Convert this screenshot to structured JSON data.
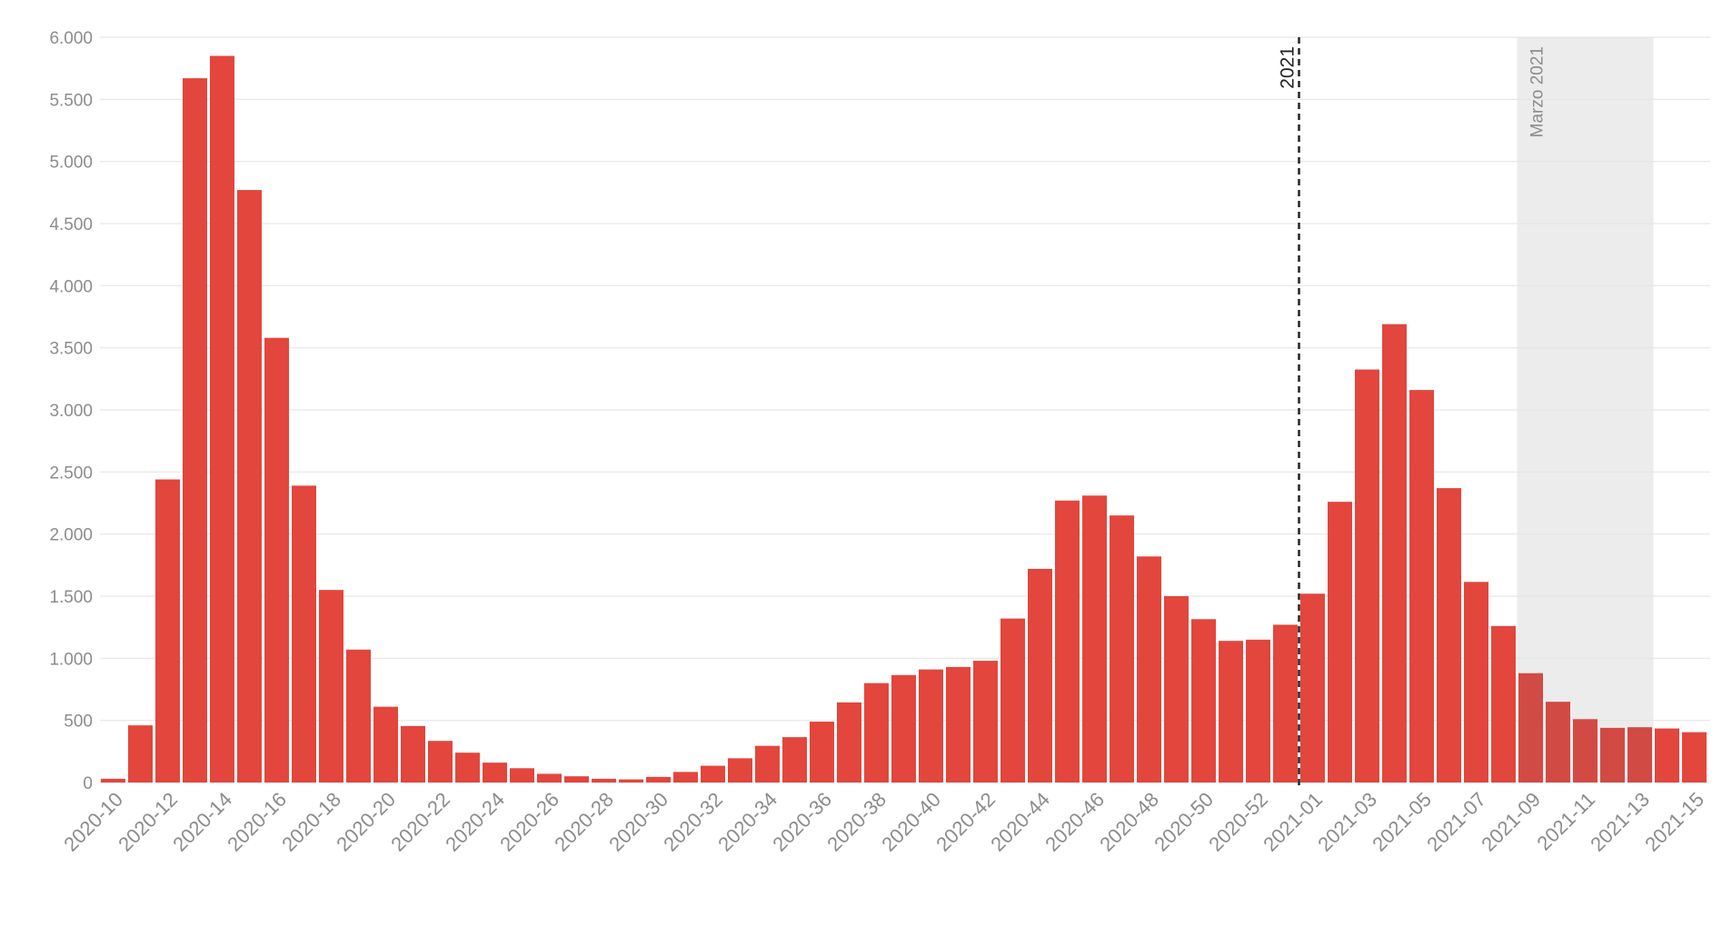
{
  "chart_data": {
    "type": "bar",
    "title": "",
    "xlabel": "",
    "ylabel": "",
    "ylim": [
      0,
      6000
    ],
    "y_ticks": [
      {
        "value": 0,
        "label": "0"
      },
      {
        "value": 500,
        "label": "500"
      },
      {
        "value": 1000,
        "label": "1.000"
      },
      {
        "value": 1500,
        "label": "1.500"
      },
      {
        "value": 2000,
        "label": "2.000"
      },
      {
        "value": 2500,
        "label": "2.500"
      },
      {
        "value": 3000,
        "label": "3.000"
      },
      {
        "value": 3500,
        "label": "3.500"
      },
      {
        "value": 4000,
        "label": "4.000"
      },
      {
        "value": 4500,
        "label": "4.500"
      },
      {
        "value": 5000,
        "label": "5.000"
      },
      {
        "value": 5500,
        "label": "5.500"
      },
      {
        "value": 6000,
        "label": "6.000"
      }
    ],
    "grid": true,
    "legend": "none",
    "bar_color": "#e2463d",
    "categories": [
      "2020-10",
      "2020-11",
      "2020-12",
      "2020-13",
      "2020-14",
      "2020-15",
      "2020-16",
      "2020-17",
      "2020-18",
      "2020-19",
      "2020-20",
      "2020-21",
      "2020-22",
      "2020-23",
      "2020-24",
      "2020-25",
      "2020-26",
      "2020-27",
      "2020-28",
      "2020-29",
      "2020-30",
      "2020-31",
      "2020-32",
      "2020-33",
      "2020-34",
      "2020-35",
      "2020-36",
      "2020-37",
      "2020-38",
      "2020-39",
      "2020-40",
      "2020-41",
      "2020-42",
      "2020-43",
      "2020-44",
      "2020-45",
      "2020-46",
      "2020-47",
      "2020-48",
      "2020-49",
      "2020-50",
      "2020-51",
      "2020-52",
      "2020-53",
      "2021-01",
      "2021-02",
      "2021-03",
      "2021-04",
      "2021-05",
      "2021-06",
      "2021-07",
      "2021-08",
      "2021-09",
      "2021-10",
      "2021-11",
      "2021-12",
      "2021-13",
      "2021-14",
      "2021-15"
    ],
    "x_tick_labels": [
      "2020-10",
      "2020-12",
      "2020-14",
      "2020-16",
      "2020-18",
      "2020-20",
      "2020-22",
      "2020-24",
      "2020-26",
      "2020-28",
      "2020-30",
      "2020-32",
      "2020-34",
      "2020-36",
      "2020-38",
      "2020-40",
      "2020-42",
      "2020-44",
      "2020-46",
      "2020-48",
      "2020-50",
      "2020-52",
      "2021-01",
      "2021-03",
      "2021-05",
      "2021-07",
      "2021-09",
      "2021-11",
      "2021-13",
      "2021-15"
    ],
    "values": [
      30,
      460,
      2440,
      5670,
      5850,
      4770,
      3580,
      2390,
      1550,
      1070,
      610,
      455,
      335,
      240,
      160,
      115,
      70,
      50,
      30,
      25,
      45,
      85,
      135,
      195,
      295,
      365,
      490,
      645,
      800,
      865,
      910,
      930,
      980,
      1320,
      1720,
      2270,
      2310,
      2150,
      1820,
      1500,
      1315,
      1140,
      1150,
      1270,
      1520,
      2260,
      3325,
      3690,
      3160,
      2370,
      1615,
      1260,
      880,
      650,
      510,
      440,
      445,
      435,
      405
    ],
    "annotations": {
      "year_line": {
        "label": "2021",
        "between": [
          "2020-53",
          "2021-01"
        ],
        "style": "dashed",
        "color": "#222222"
      },
      "highlight_band": {
        "label": "Marzo 2021",
        "from": "2021-09",
        "to": "2021-13",
        "color": "#ececec",
        "label_color": "#8c8c8c"
      }
    }
  }
}
